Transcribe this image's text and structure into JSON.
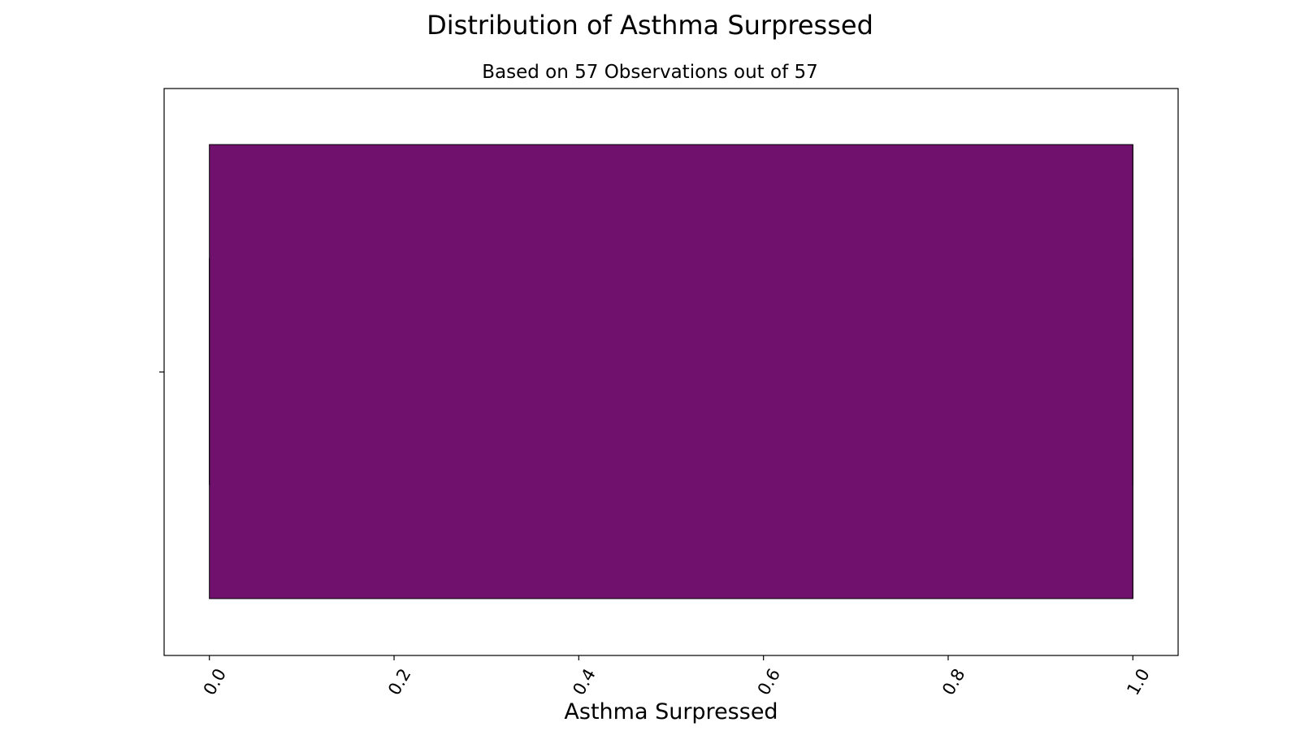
{
  "chart_data": {
    "type": "box",
    "title": "Distribution of Asthma Surpressed",
    "subtitle": "Based on 57 Observations out of 57",
    "xlabel": "Asthma Surpressed",
    "ylabel": "",
    "xlim": [
      -0.049,
      1.049
    ],
    "x_ticks": [
      0.0,
      0.2,
      0.4,
      0.6,
      0.8,
      1.0
    ],
    "x_tick_labels": [
      "0.0",
      "0.2",
      "0.4",
      "0.6",
      "0.8",
      "1.0"
    ],
    "tick_rotation_deg": -60,
    "grid": false,
    "legend": "none",
    "box": {
      "min": 0.0,
      "q1": 0.0,
      "median": 1.0,
      "q3": 1.0,
      "max": 1.0,
      "color": "#70116d",
      "edge_color": "#000000"
    }
  }
}
